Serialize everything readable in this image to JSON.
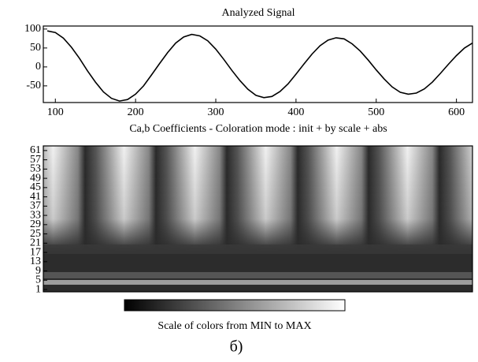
{
  "chart_data": [
    {
      "type": "line",
      "title": "Analyzed Signal",
      "x": [
        90,
        100,
        110,
        120,
        130,
        140,
        150,
        160,
        170,
        180,
        190,
        200,
        210,
        220,
        230,
        240,
        250,
        260,
        270,
        280,
        290,
        300,
        310,
        320,
        330,
        340,
        350,
        360,
        370,
        380,
        390,
        400,
        410,
        420,
        430,
        440,
        450,
        460,
        470,
        480,
        490,
        500,
        510,
        520,
        530,
        540,
        550,
        560,
        570,
        580,
        590,
        600,
        610,
        620
      ],
      "values": [
        95,
        91,
        76,
        52,
        23,
        -10,
        -40,
        -66,
        -83,
        -90,
        -86,
        -72,
        -50,
        -21,
        9,
        38,
        63,
        79,
        86,
        82,
        69,
        47,
        20,
        -9,
        -36,
        -59,
        -75,
        -81,
        -78,
        -65,
        -45,
        -19,
        8,
        34,
        56,
        71,
        77,
        74,
        61,
        42,
        18,
        -8,
        -32,
        -53,
        -67,
        -72,
        -69,
        -58,
        -40,
        -17,
        7,
        30,
        50,
        63
      ],
      "color": "#000000",
      "xlim": [
        85,
        620
      ],
      "xticks": [
        100,
        200,
        300,
        400,
        500,
        600
      ],
      "ylim": [
        -94,
        108
      ],
      "yticks": [
        -50,
        0,
        50,
        100
      ]
    },
    {
      "type": "heatmap",
      "title": "Ca,b Coefficients  - Coloration mode : init + by scale + abs",
      "ylim": [
        0,
        63
      ],
      "yticks": [
        1,
        5,
        9,
        13,
        17,
        21,
        25,
        29,
        33,
        37,
        41,
        45,
        49,
        53,
        57,
        61
      ],
      "colorbar_label": "Scale of colors from MIN to MAX"
    }
  ],
  "caption": "б)"
}
